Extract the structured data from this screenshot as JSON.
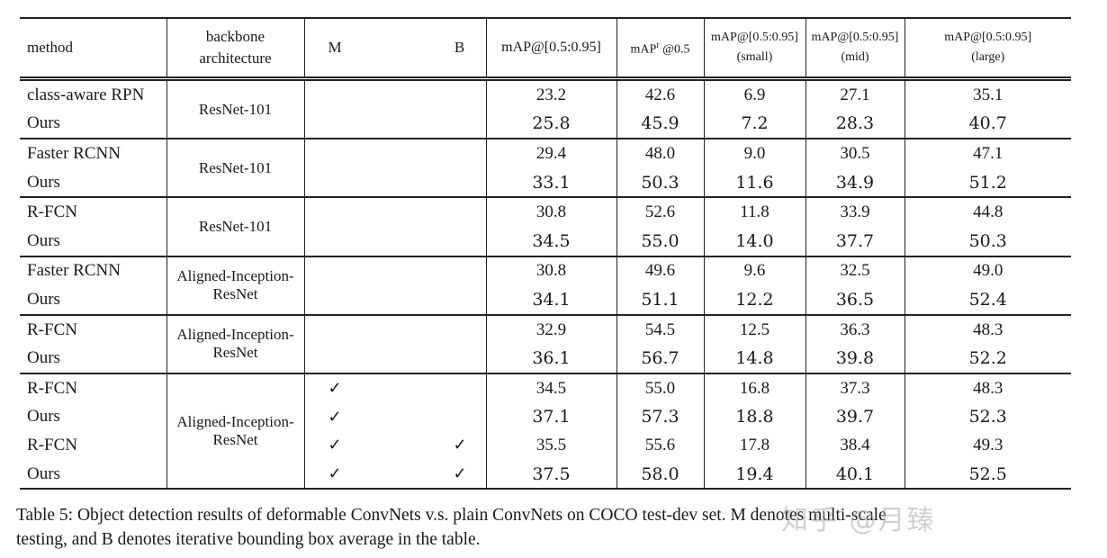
{
  "table": {
    "headers": {
      "method": "method",
      "backbone": [
        "backbone",
        "architecture"
      ],
      "m": "M",
      "b": "B",
      "map": "mAP@[0.5:0.95]",
      "mapr_prefix": "mAP",
      "mapr_sup": "r",
      "mapr_suffix": " @0.5",
      "map_small": [
        "mAP@[0.5:0.95]",
        "(small)"
      ],
      "map_mid": [
        "mAP@[0.5:0.95]",
        "(mid)"
      ],
      "map_large": [
        "mAP@[0.5:0.95]",
        "(large)"
      ]
    },
    "check_glyph": "✓",
    "groups": [
      {
        "backbone": "ResNet-101",
        "rows": [
          {
            "method": "class-aware RPN",
            "bold": false,
            "M": "",
            "B": "",
            "values": [
              "23.2",
              "42.6",
              "6.9",
              "27.1",
              "35.1"
            ]
          },
          {
            "method": "Ours",
            "bold": true,
            "M": "",
            "B": "",
            "values": [
              "25.8",
              "45.9",
              "7.2",
              "28.3",
              "40.7"
            ]
          }
        ]
      },
      {
        "backbone": "ResNet-101",
        "rows": [
          {
            "method": "Faster RCNN",
            "bold": false,
            "M": "",
            "B": "",
            "values": [
              "29.4",
              "48.0",
              "9.0",
              "30.5",
              "47.1"
            ]
          },
          {
            "method": "Ours",
            "bold": true,
            "M": "",
            "B": "",
            "values": [
              "33.1",
              "50.3",
              "11.6",
              "34.9",
              "51.2"
            ]
          }
        ]
      },
      {
        "backbone": "ResNet-101",
        "rows": [
          {
            "method": "R-FCN",
            "bold": false,
            "M": "",
            "B": "",
            "values": [
              "30.8",
              "52.6",
              "11.8",
              "33.9",
              "44.8"
            ]
          },
          {
            "method": "Ours",
            "bold": true,
            "M": "",
            "B": "",
            "values": [
              "34.5",
              "55.0",
              "14.0",
              "37.7",
              "50.3"
            ]
          }
        ]
      },
      {
        "backbone": "Aligned-Inception-ResNet",
        "rows": [
          {
            "method": "Faster RCNN",
            "bold": false,
            "M": "",
            "B": "",
            "values": [
              "30.8",
              "49.6",
              "9.6",
              "32.5",
              "49.0"
            ]
          },
          {
            "method": "Ours",
            "bold": true,
            "M": "",
            "B": "",
            "values": [
              "34.1",
              "51.1",
              "12.2",
              "36.5",
              "52.4"
            ]
          }
        ]
      },
      {
        "backbone": "Aligned-Inception-ResNet",
        "rows": [
          {
            "method": "R-FCN",
            "bold": false,
            "M": "",
            "B": "",
            "values": [
              "32.9",
              "54.5",
              "12.5",
              "36.3",
              "48.3"
            ]
          },
          {
            "method": "Ours",
            "bold": true,
            "M": "",
            "B": "",
            "values": [
              "36.1",
              "56.7",
              "14.8",
              "39.8",
              "52.2"
            ]
          }
        ]
      },
      {
        "backbone": "Aligned-Inception-ResNet",
        "rows": [
          {
            "method": "R-FCN",
            "bold": false,
            "M": "✓",
            "B": "",
            "values": [
              "34.5",
              "55.0",
              "16.8",
              "37.3",
              "48.3"
            ]
          },
          {
            "method": "Ours",
            "bold": true,
            "M": "✓",
            "B": "",
            "values": [
              "37.1",
              "57.3",
              "18.8",
              "39.7",
              "52.3"
            ]
          },
          {
            "method": "R-FCN",
            "bold": false,
            "M": "✓",
            "B": "✓",
            "values": [
              "35.5",
              "55.6",
              "17.8",
              "38.4",
              "49.3"
            ]
          },
          {
            "method": "Ours",
            "bold": true,
            "M": "✓",
            "B": "✓",
            "values": [
              "37.5",
              "58.0",
              "19.4",
              "40.1",
              "52.5"
            ]
          }
        ]
      }
    ]
  },
  "caption": {
    "line1": "Table 5: Object detection results of deformable ConvNets v.s. plain ConvNets on COCO test-dev set. M denotes multi-scale",
    "line2": "testing, and B denotes iterative bounding box average in the table."
  },
  "watermark": "知乎 @月臻"
}
